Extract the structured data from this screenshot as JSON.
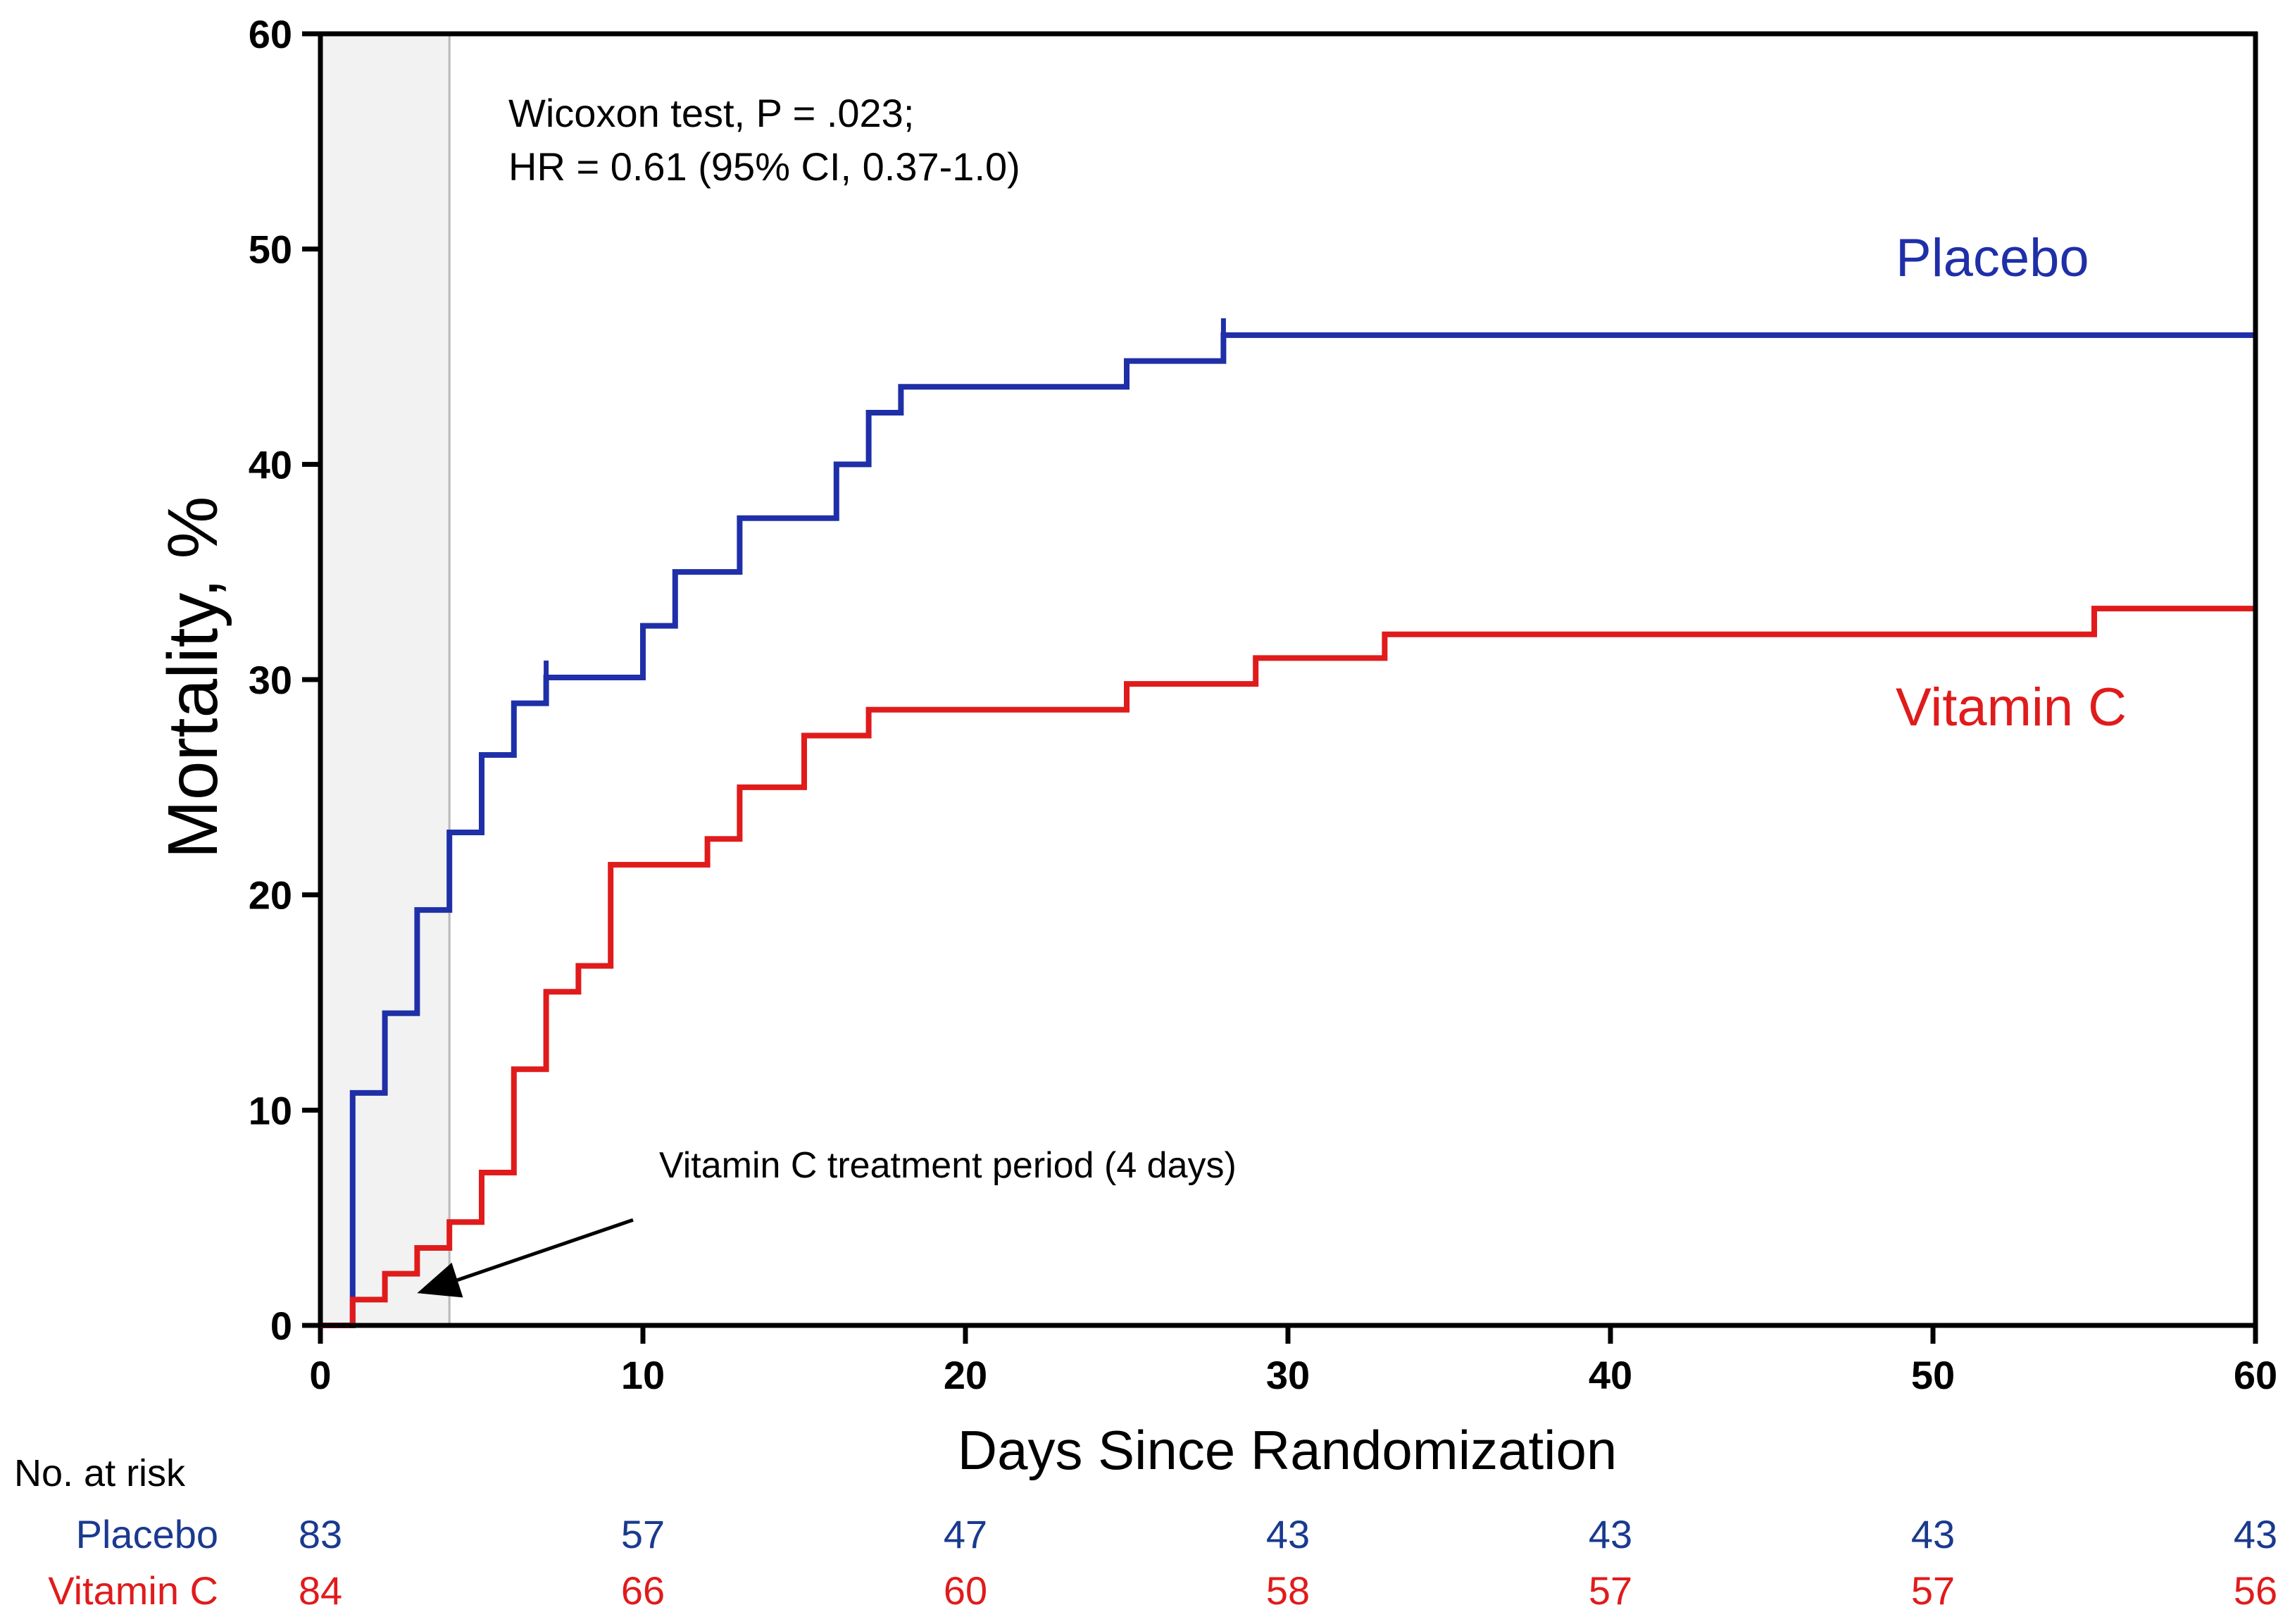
{
  "chart_data": {
    "type": "line",
    "subtype": "kaplan-meier-step",
    "xlabel": "Days Since Randomization",
    "ylabel": "Mortality, %",
    "xlim": [
      0,
      60
    ],
    "ylim": [
      0,
      60
    ],
    "x_ticks": [
      0,
      10,
      20,
      30,
      40,
      50,
      60
    ],
    "y_ticks": [
      0,
      10,
      20,
      30,
      40,
      50,
      60
    ],
    "grid": false,
    "shaded_region": {
      "x_start": 0,
      "x_end": 4,
      "color": "#f2f2f2"
    },
    "annotation_stats": [
      "Wicoxon test, P = .023;",
      "HR = 0.61 (95% CI, 0.37-1.0)"
    ],
    "annotation_arrow": {
      "text": "Vitamin C treatment period (4 days)",
      "points_to": [
        3,
        1.5
      ],
      "from": [
        10,
        4.9
      ]
    },
    "series": [
      {
        "name": "Placebo",
        "color": "#1f2fa8",
        "steps": [
          [
            0,
            0
          ],
          [
            1,
            10.8
          ],
          [
            2,
            14.5
          ],
          [
            3,
            19.3
          ],
          [
            4,
            22.9
          ],
          [
            5,
            26.5
          ],
          [
            6,
            28.9
          ],
          [
            7,
            30.1
          ],
          [
            10,
            32.5
          ],
          [
            11,
            35.0
          ],
          [
            13,
            37.5
          ],
          [
            16,
            40.0
          ],
          [
            17,
            42.4
          ],
          [
            18,
            43.6
          ],
          [
            25,
            44.8
          ],
          [
            28,
            46.0
          ],
          [
            60,
            46.0
          ]
        ],
        "censor_marks": [
          [
            7,
            30.1
          ],
          [
            28,
            46.0
          ],
          [
            60,
            46.0
          ]
        ]
      },
      {
        "name": "Vitamin C",
        "color": "#e01b1b",
        "steps": [
          [
            0,
            0
          ],
          [
            1,
            1.2
          ],
          [
            2,
            2.4
          ],
          [
            3,
            3.6
          ],
          [
            4,
            4.8
          ],
          [
            5,
            7.1
          ],
          [
            6,
            11.9
          ],
          [
            7,
            15.5
          ],
          [
            8,
            16.7
          ],
          [
            9,
            21.4
          ],
          [
            12,
            22.6
          ],
          [
            13,
            25.0
          ],
          [
            15,
            27.4
          ],
          [
            17,
            28.6
          ],
          [
            25,
            29.8
          ],
          [
            29,
            31.0
          ],
          [
            33,
            32.1
          ],
          [
            55,
            33.3
          ],
          [
            60,
            33.3
          ]
        ],
        "censor_marks": []
      }
    ],
    "risk_table": {
      "title": "No. at risk",
      "timepoints": [
        0,
        10,
        20,
        30,
        40,
        50,
        60
      ],
      "rows": [
        {
          "label": "Placebo",
          "color": "#1a3a8f",
          "values": [
            "83",
            "57",
            "47",
            "43",
            "43",
            "43",
            "43"
          ]
        },
        {
          "label": "Vitamin C",
          "color": "#e01b1b",
          "values": [
            "84",
            "66",
            "60",
            "58",
            "57",
            "57",
            "56"
          ]
        }
      ]
    }
  }
}
